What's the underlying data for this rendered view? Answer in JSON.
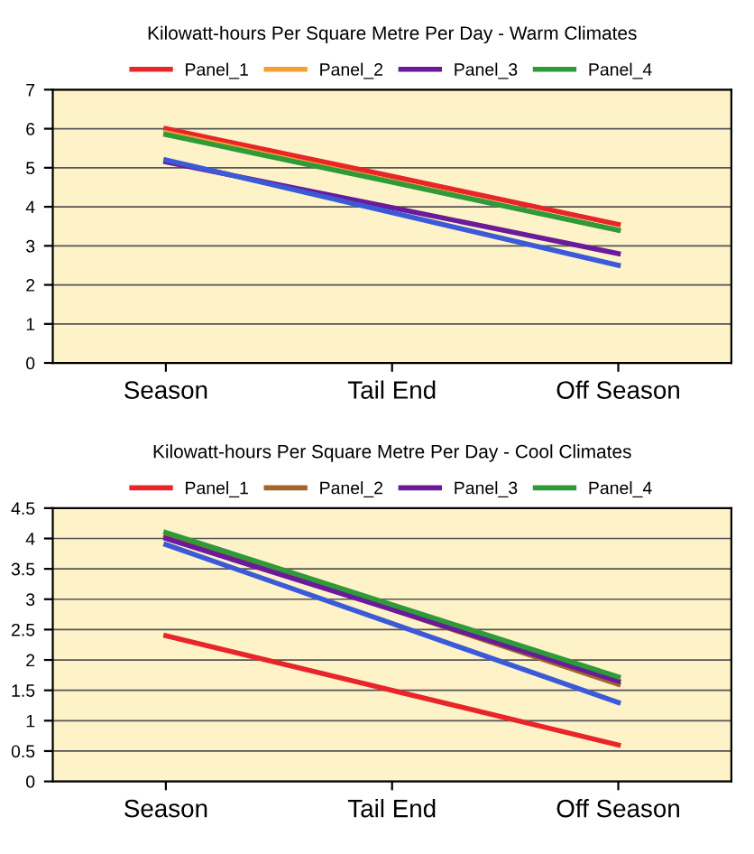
{
  "chart_data": [
    {
      "type": "line",
      "title": "Kilowatt-hours Per Square Metre Per Day - Warm Climates",
      "categories": [
        "Season",
        "Tail End",
        "Off Season"
      ],
      "series": [
        {
          "name": "Panel_1",
          "color": "#e8262a",
          "values": [
            6.0,
            4.78,
            3.55
          ]
        },
        {
          "name": "Panel_2",
          "color": "#f4a030",
          "values": [
            5.9,
            4.65,
            3.4
          ]
        },
        {
          "name": "Panel_3",
          "color": "#6a1a9a",
          "values": [
            5.15,
            3.98,
            2.8
          ]
        },
        {
          "name": "Panel_4",
          "color": "#2e9a3a",
          "values": [
            5.85,
            4.63,
            3.4
          ]
        },
        {
          "color": "#3a5ad8",
          "values": [
            5.2,
            3.85,
            2.5
          ]
        }
      ],
      "ylim": [
        0,
        7
      ],
      "yticks": [
        0,
        1,
        2,
        3,
        4,
        5,
        6,
        7
      ],
      "grid": "y",
      "legend": "top",
      "marker": "none",
      "line_style": "solid"
    },
    {
      "type": "line",
      "title": "Kilowatt-hours Per Square Metre Per Day - Cool Climates",
      "categories": [
        "Season",
        "Tail End",
        "Off Season"
      ],
      "series": [
        {
          "name": "Panel_1",
          "color": "#e8262a",
          "values": [
            2.4,
            1.5,
            0.6
          ]
        },
        {
          "name": "Panel_2",
          "color": "#a0662a",
          "values": [
            4.05,
            2.83,
            1.6
          ]
        },
        {
          "name": "Panel_3",
          "color": "#6a1a9a",
          "values": [
            4.0,
            2.83,
            1.65
          ]
        },
        {
          "name": "Panel_4",
          "color": "#2e9a3a",
          "values": [
            4.1,
            2.91,
            1.72
          ]
        },
        {
          "color": "#3a5ad8",
          "values": [
            3.9,
            2.6,
            1.3
          ]
        }
      ],
      "ylim": [
        0,
        4.5
      ],
      "yticks": [
        0,
        0.5,
        1,
        1.5,
        2,
        2.5,
        3,
        3.5,
        4,
        4.5
      ],
      "grid": "y",
      "legend": "top",
      "marker": "none",
      "line_style": "solid"
    }
  ]
}
